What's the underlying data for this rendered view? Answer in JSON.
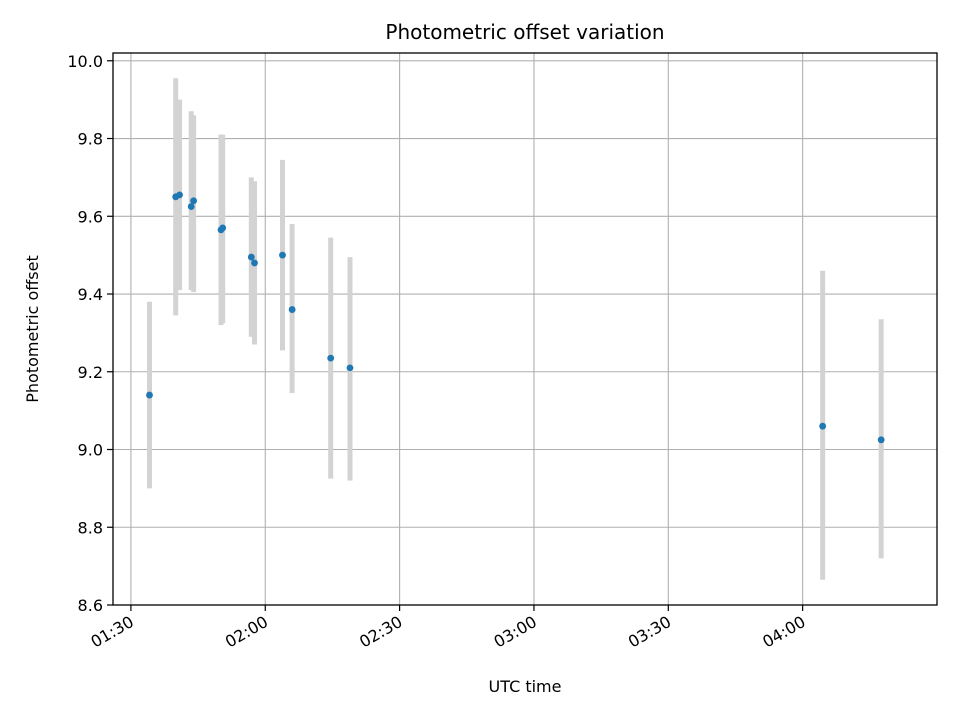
{
  "chart_data": {
    "type": "scatter",
    "title": "Photometric offset variation",
    "xlabel": "UTC time",
    "ylabel": "Photometric offset",
    "x_axis_kind": "time",
    "xlim": [
      "01:26",
      "04:30"
    ],
    "ylim": [
      8.6,
      10.02
    ],
    "x_ticks": [
      "01:30",
      "02:00",
      "02:30",
      "03:00",
      "03:30",
      "04:00"
    ],
    "y_ticks": [
      "8.6",
      "8.8",
      "9.0",
      "9.2",
      "9.4",
      "9.6",
      "9.8",
      "10.0"
    ],
    "grid": true,
    "colors": {
      "point": "#1f77b4",
      "error_bar": "#d3d3d3",
      "grid": "#b0b0b0",
      "axes": "#000000"
    },
    "series": [
      {
        "points": [
          {
            "x": "01:34:09",
            "y": 9.14,
            "y_low": 8.9,
            "y_high": 9.38
          },
          {
            "x": "01:40:00",
            "y": 9.65,
            "y_low": 9.345,
            "y_high": 9.955
          },
          {
            "x": "01:40:52",
            "y": 9.655,
            "y_low": 9.41,
            "y_high": 9.9
          },
          {
            "x": "01:43:28",
            "y": 9.625,
            "y_low": 9.41,
            "y_high": 9.87
          },
          {
            "x": "01:44:00",
            "y": 9.64,
            "y_low": 9.405,
            "y_high": 9.86
          },
          {
            "x": "01:50:07",
            "y": 9.565,
            "y_low": 9.32,
            "y_high": 9.81
          },
          {
            "x": "01:50:30",
            "y": 9.57,
            "y_low": 9.325,
            "y_high": 9.81
          },
          {
            "x": "01:56:53",
            "y": 9.495,
            "y_low": 9.29,
            "y_high": 9.7
          },
          {
            "x": "01:57:36",
            "y": 9.48,
            "y_low": 9.27,
            "y_high": 9.69
          },
          {
            "x": "02:03:51",
            "y": 9.5,
            "y_low": 9.255,
            "y_high": 9.745
          },
          {
            "x": "02:06:00",
            "y": 9.36,
            "y_low": 9.145,
            "y_high": 9.58
          },
          {
            "x": "02:14:37",
            "y": 9.235,
            "y_low": 8.925,
            "y_high": 9.545
          },
          {
            "x": "02:18:55",
            "y": 9.21,
            "y_low": 8.92,
            "y_high": 9.495
          },
          {
            "x": "04:04:28",
            "y": 9.06,
            "y_low": 8.665,
            "y_high": 9.46
          },
          {
            "x": "04:17:32",
            "y": 9.025,
            "y_low": 8.72,
            "y_high": 9.335
          }
        ]
      }
    ]
  }
}
